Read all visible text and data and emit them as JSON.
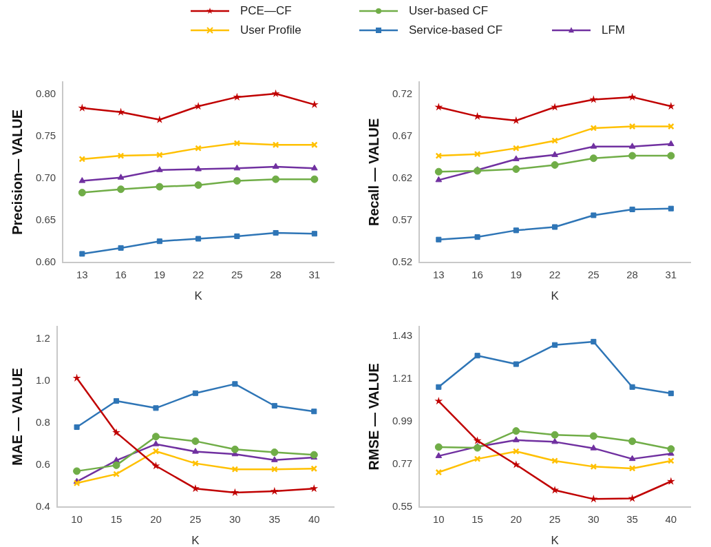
{
  "chart_data": [
    {
      "type": "line",
      "xlabel": "K",
      "ylabel": "Precision— VALUE",
      "categories": [
        "13",
        "16",
        "19",
        "22",
        "25",
        "28",
        "31"
      ],
      "ylim": [
        0.6,
        0.815
      ],
      "yticks": [
        {
          "value": 0.6,
          "label": "0.60"
        },
        {
          "value": 0.65,
          "label": "0.65"
        },
        {
          "value": 0.7,
          "label": "0.70"
        },
        {
          "value": 0.75,
          "label": "0.75"
        },
        {
          "value": 0.8,
          "label": "0.80"
        }
      ],
      "grid": false,
      "legend": "top",
      "line_style": "solid",
      "series": [
        {
          "name": "PCE—CF",
          "color": "#c00000",
          "marker": "star",
          "values": [
            0.784,
            0.779,
            0.77,
            0.786,
            0.797,
            0.801,
            0.788
          ]
        },
        {
          "name": "User Profile",
          "color": "#ffc000",
          "marker": "cross",
          "values": [
            0.723,
            0.727,
            0.728,
            0.736,
            0.742,
            0.74,
            0.74
          ]
        },
        {
          "name": "User-based CF",
          "color": "#70ad47",
          "marker": "circle",
          "values": [
            0.683,
            0.687,
            0.69,
            0.692,
            0.697,
            0.699,
            0.699
          ]
        },
        {
          "name": "Service-based CF",
          "color": "#2e75b6",
          "marker": "square",
          "values": [
            0.61,
            0.617,
            0.625,
            0.628,
            0.631,
            0.635,
            0.634
          ]
        },
        {
          "name": "LFM",
          "color": "#7030a0",
          "marker": "triangle",
          "values": [
            0.697,
            0.701,
            0.71,
            0.711,
            0.712,
            0.714,
            0.712
          ]
        }
      ]
    },
    {
      "type": "line",
      "xlabel": "K",
      "ylabel": "Recall — VALUE",
      "categories": [
        "13",
        "16",
        "19",
        "22",
        "25",
        "28",
        "31"
      ],
      "ylim": [
        0.52,
        0.735
      ],
      "yticks": [
        0.52,
        0.57,
        0.62,
        0.67,
        0.72
      ],
      "grid": false,
      "legend": false,
      "line_style": "solid",
      "series": [
        {
          "color": "#c00000",
          "marker": "star",
          "values": [
            0.705,
            0.694,
            0.689,
            0.705,
            0.714,
            0.717,
            0.706
          ]
        },
        {
          "color": "#ffc000",
          "marker": "cross",
          "values": [
            0.647,
            0.649,
            0.656,
            0.665,
            0.68,
            0.682,
            0.682
          ]
        },
        {
          "color": "#70ad47",
          "marker": "circle",
          "values": [
            0.628,
            0.629,
            0.631,
            0.636,
            0.644,
            0.647,
            0.647
          ]
        },
        {
          "color": "#2e75b6",
          "marker": "square",
          "values": [
            0.547,
            0.55,
            0.558,
            0.562,
            0.576,
            0.583,
            0.584
          ]
        },
        {
          "color": "#7030a0",
          "marker": "triangle",
          "values": [
            0.618,
            0.63,
            0.643,
            0.648,
            0.658,
            0.658,
            0.661
          ]
        }
      ]
    },
    {
      "type": "line",
      "xlabel": "K",
      "ylabel": "MAE — VALUE",
      "categories": [
        "10",
        "15",
        "20",
        "25",
        "30",
        "35",
        "40"
      ],
      "ylim": [
        0.4,
        1.26
      ],
      "yticks": [
        0.4,
        0.6,
        0.8,
        {
          "value": 1.0,
          "label": "1.0"
        },
        1.2
      ],
      "grid": false,
      "legend": false,
      "line_style": "solid",
      "series": [
        {
          "color": "#c00000",
          "marker": "star",
          "values": [
            1.014,
            0.754,
            0.595,
            0.487,
            0.468,
            0.474,
            0.487
          ]
        },
        {
          "color": "#ffc000",
          "marker": "cross",
          "values": [
            0.513,
            0.556,
            0.665,
            0.607,
            0.579,
            0.579,
            0.582
          ]
        },
        {
          "color": "#70ad47",
          "marker": "circle",
          "values": [
            0.57,
            0.598,
            0.735,
            0.713,
            0.674,
            0.66,
            0.648
          ]
        },
        {
          "color": "#2e75b6",
          "marker": "square",
          "values": [
            0.78,
            0.905,
            0.871,
            0.942,
            0.986,
            0.882,
            0.855
          ]
        },
        {
          "color": "#7030a0",
          "marker": "triangle",
          "values": [
            0.52,
            0.621,
            0.699,
            0.663,
            0.651,
            0.623,
            0.635
          ]
        }
      ]
    },
    {
      "type": "line",
      "xlabel": "K",
      "ylabel": "RMSE — VALUE",
      "categories": [
        "10",
        "15",
        "20",
        "25",
        "30",
        "35",
        "40"
      ],
      "ylim": [
        0.55,
        1.48
      ],
      "yticks": [
        0.55,
        0.77,
        0.99,
        1.21,
        1.43
      ],
      "grid": false,
      "legend": false,
      "line_style": "solid",
      "series": [
        {
          "color": "#c00000",
          "marker": "star",
          "values": [
            1.095,
            0.891,
            0.767,
            0.636,
            0.59,
            0.593,
            0.681
          ]
        },
        {
          "color": "#ffc000",
          "marker": "cross",
          "values": [
            0.728,
            0.797,
            0.836,
            0.787,
            0.757,
            0.748,
            0.787
          ]
        },
        {
          "color": "#70ad47",
          "marker": "circle",
          "values": [
            0.858,
            0.854,
            0.941,
            0.921,
            0.915,
            0.888,
            0.848
          ]
        },
        {
          "color": "#2e75b6",
          "marker": "square",
          "values": [
            1.168,
            1.33,
            1.286,
            1.385,
            1.402,
            1.168,
            1.135
          ]
        },
        {
          "color": "#7030a0",
          "marker": "triangle",
          "values": [
            0.812,
            0.86,
            0.894,
            0.885,
            0.852,
            0.797,
            0.824
          ]
        }
      ]
    }
  ]
}
